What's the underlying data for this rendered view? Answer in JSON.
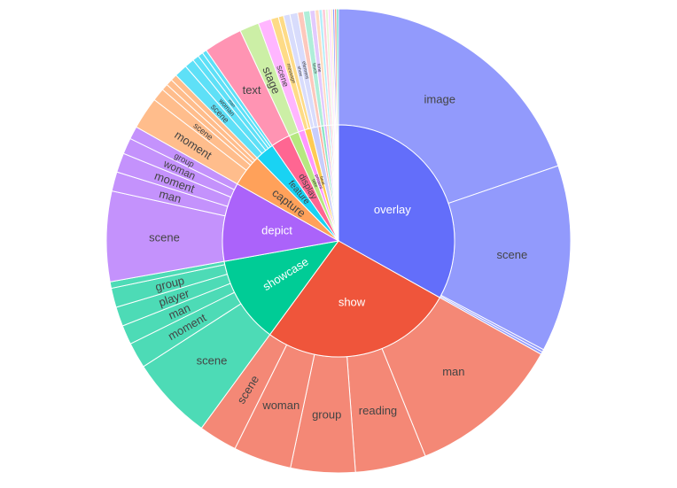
{
  "chart_data": {
    "type": "sunburst",
    "title": "",
    "rings": [
      "verb",
      "noun"
    ],
    "background": "#ffffff",
    "nodes": [
      {
        "label": "overlay",
        "color": "#636efa",
        "children": [
          {
            "label": "image",
            "value": 44
          },
          {
            "label": "scene",
            "value": 29
          },
          {
            "label": "",
            "value": 0.4
          },
          {
            "label": "",
            "value": 0.4
          }
        ]
      },
      {
        "label": "show",
        "color": "#ef553b",
        "children": [
          {
            "label": "man",
            "value": 24
          },
          {
            "label": "reading",
            "value": 11
          },
          {
            "label": "group",
            "value": 10
          },
          {
            "label": "woman",
            "value": 9
          },
          {
            "label": "scene",
            "value": 6
          }
        ]
      },
      {
        "label": "showcase",
        "color": "#00cc96",
        "children": [
          {
            "label": "scene",
            "value": 13
          },
          {
            "label": "moment",
            "value": 4
          },
          {
            "label": "man",
            "value": 3
          },
          {
            "label": "player",
            "value": 3
          },
          {
            "label": "group",
            "value": 3
          },
          {
            "label": "",
            "value": 1
          }
        ]
      },
      {
        "label": "depict",
        "color": "#ab63fa",
        "children": [
          {
            "label": "scene",
            "value": 14
          },
          {
            "label": "man",
            "value": 3
          },
          {
            "label": "moment",
            "value": 3
          },
          {
            "label": "woman",
            "value": 2.5
          },
          {
            "label": "group",
            "value": 2
          }
        ]
      },
      {
        "label": "capture",
        "color": "#ffa15a",
        "children": [
          {
            "label": "moment",
            "value": 5
          },
          {
            "label": "scene",
            "value": 2
          },
          {
            "label": "",
            "value": 1
          },
          {
            "label": "",
            "value": 1
          },
          {
            "label": "",
            "value": 1
          }
        ]
      },
      {
        "label": "feature",
        "color": "#19d3f3",
        "children": [
          {
            "label": "scene",
            "value": 2
          },
          {
            "label": "woman",
            "value": 1.5
          },
          {
            "label": "man",
            "value": 1
          },
          {
            "label": "",
            "value": 0.8
          },
          {
            "label": "",
            "value": 0.7
          }
        ]
      },
      {
        "label": "display",
        "color": "#ff6692",
        "children": [
          {
            "label": "text",
            "value": 6
          }
        ]
      },
      {
        "label": "take",
        "color": "#b6e880",
        "children": [
          {
            "label": "stage",
            "value": 3
          }
        ]
      },
      {
        "label": "present",
        "color": "#ff97ff",
        "children": [
          {
            "label": "scene",
            "value": 2
          }
        ]
      },
      {
        "label": "beat",
        "color": "#fecb52",
        "children": [
          {
            "label": "message",
            "value": 1.2
          },
          {
            "label": "",
            "value": 0.8
          }
        ]
      },
      {
        "label": "",
        "color": "#c7cdfb",
        "children": [
          {
            "label": "show",
            "value": 1
          },
          {
            "label": "element",
            "value": 1.2
          }
        ]
      },
      {
        "label": "",
        "color": "#fcb09f",
        "children": [
          {
            "label": "",
            "value": 0.9
          }
        ]
      },
      {
        "label": "",
        "color": "#8de6c8",
        "children": [
          {
            "label": "touch",
            "value": 1
          }
        ]
      },
      {
        "label": "",
        "color": "#d6b3fc",
        "children": [
          {
            "label": "tone",
            "value": 0.8
          }
        ]
      },
      {
        "label": "",
        "color": "#ffcca5",
        "children": [
          {
            "label": "",
            "value": 0.6
          }
        ]
      },
      {
        "label": "",
        "color": "#95e6f8",
        "children": [
          {
            "label": "",
            "value": 0.5
          }
        ]
      },
      {
        "label": "",
        "color": "#ffb4c9",
        "children": [
          {
            "label": "",
            "value": 0.5
          }
        ]
      },
      {
        "label": "",
        "color": "#daf3c4",
        "children": [
          {
            "label": "",
            "value": 0.4
          }
        ]
      },
      {
        "label": "",
        "color": "#ffcbff",
        "children": [
          {
            "label": "",
            "value": 0.4
          }
        ]
      },
      {
        "label": "",
        "color": "#fee4a9",
        "children": [
          {
            "label": "",
            "value": 0.3
          }
        ]
      },
      {
        "label": "",
        "color": "#636efa",
        "children": [
          {
            "label": "",
            "value": 0.3
          }
        ]
      },
      {
        "label": "",
        "color": "#ef553b",
        "children": [
          {
            "label": "",
            "value": 0.3
          }
        ]
      },
      {
        "label": "",
        "color": "#00cc96",
        "children": [
          {
            "label": "",
            "value": 0.3
          }
        ]
      }
    ]
  }
}
